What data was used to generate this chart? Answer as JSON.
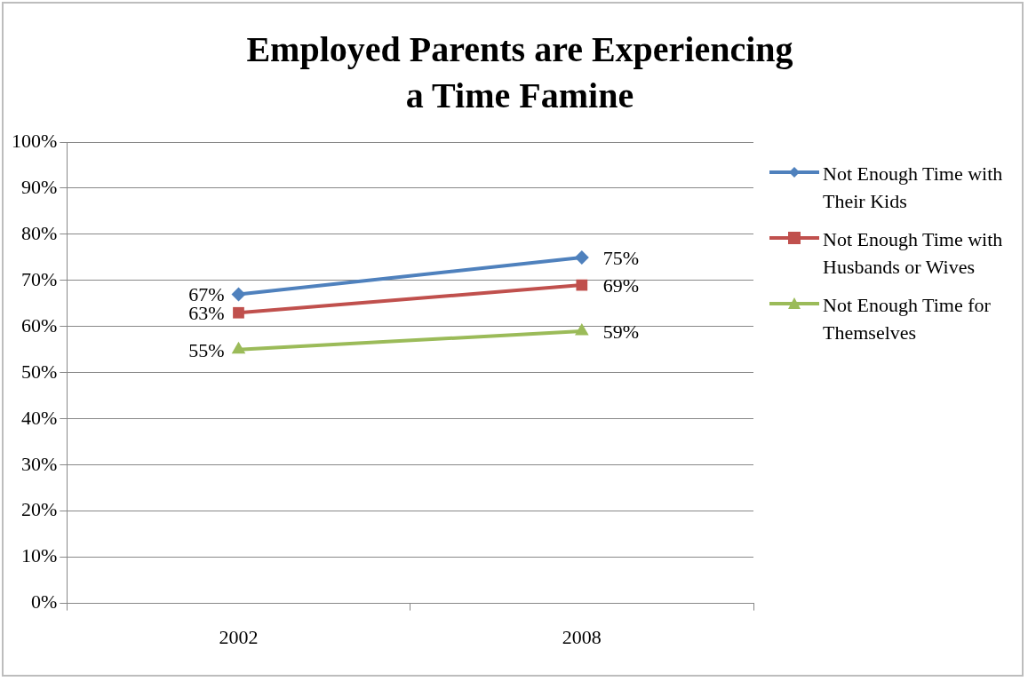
{
  "chart_data": {
    "type": "line",
    "title": "Employed Parents are Experiencing a Time Famine",
    "categories": [
      "2002",
      "2008"
    ],
    "series": [
      {
        "name": "Not Enough Time with Their Kids",
        "color": "#4f81bd",
        "marker": "diamond",
        "values": [
          67,
          75
        ],
        "value_labels": [
          "67%",
          "75%"
        ]
      },
      {
        "name": "Not Enough Time with Husbands or Wives",
        "color": "#c0504d",
        "marker": "square",
        "values": [
          63,
          69
        ],
        "value_labels": [
          "63%",
          "69%"
        ]
      },
      {
        "name": "Not Enough Time for Themselves",
        "color": "#9bbb59",
        "marker": "triangle",
        "values": [
          55,
          59
        ],
        "value_labels": [
          "55%",
          "59%"
        ]
      }
    ],
    "ylim": [
      0,
      100
    ],
    "yticks": [
      {
        "value": 0,
        "label": "0%"
      },
      {
        "value": 10,
        "label": "10%"
      },
      {
        "value": 20,
        "label": "20%"
      },
      {
        "value": 30,
        "label": "30%"
      },
      {
        "value": 40,
        "label": "40%"
      },
      {
        "value": 50,
        "label": "50%"
      },
      {
        "value": 60,
        "label": "60%"
      },
      {
        "value": 70,
        "label": "70%"
      },
      {
        "value": 80,
        "label": "80%"
      },
      {
        "value": 90,
        "label": "90%"
      },
      {
        "value": 100,
        "label": "100%"
      }
    ],
    "grid": "y",
    "legend": "right"
  }
}
